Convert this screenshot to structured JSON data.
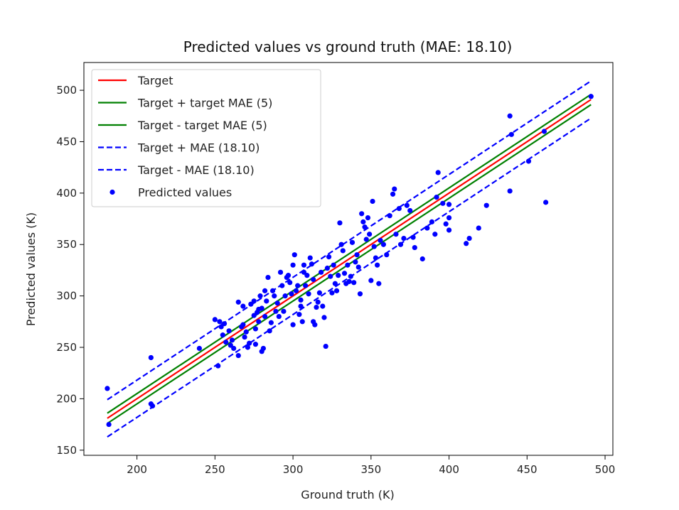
{
  "chart_data": {
    "type": "scatter",
    "title": "Predicted values vs ground truth (MAE: 18.10)",
    "xlabel": "Ground truth (K)",
    "ylabel": "Predicted values (K)",
    "xlim": [
      166,
      505
    ],
    "ylim": [
      145,
      527
    ],
    "xticks": [
      200,
      250,
      300,
      350,
      400,
      450,
      500
    ],
    "yticks": [
      150,
      200,
      250,
      300,
      350,
      400,
      450,
      500
    ],
    "xtick_labels": [
      "200",
      "250",
      "300",
      "350",
      "400",
      "450",
      "500"
    ],
    "ytick_labels": [
      "150",
      "200",
      "250",
      "300",
      "350",
      "400",
      "450",
      "500"
    ],
    "grid": false,
    "legend_position": "upper-left",
    "lines": [
      {
        "name": "Target",
        "offset": 0,
        "color": "#ff0000",
        "dash": "solid",
        "x": [
          181,
          491
        ]
      },
      {
        "name": "Target + target MAE (5)",
        "offset": 5,
        "color": "#008000",
        "dash": "solid",
        "x": [
          181,
          491
        ]
      },
      {
        "name": "Target - target MAE (5)",
        "offset": -5,
        "color": "#008000",
        "dash": "solid",
        "x": [
          181,
          491
        ]
      },
      {
        "name": "Target + MAE (18.10)",
        "offset": 18.1,
        "color": "#0000ff",
        "dash": "dashed",
        "x": [
          181,
          491
        ]
      },
      {
        "name": "Target - MAE (18.10)",
        "offset": -18.1,
        "color": "#0000ff",
        "dash": "dashed",
        "x": [
          181,
          491
        ]
      }
    ],
    "scatter": {
      "name": "Predicted values",
      "color": "#0000ff",
      "points": [
        [
          181,
          210
        ],
        [
          182,
          175
        ],
        [
          209,
          240
        ],
        [
          209,
          195
        ],
        [
          210,
          193
        ],
        [
          240,
          249
        ],
        [
          250,
          277
        ],
        [
          252,
          232
        ],
        [
          253,
          275
        ],
        [
          254,
          270
        ],
        [
          255,
          262
        ],
        [
          256,
          273
        ],
        [
          257,
          255
        ],
        [
          259,
          266
        ],
        [
          260,
          252
        ],
        [
          261,
          257
        ],
        [
          262,
          249
        ],
        [
          265,
          294
        ],
        [
          265,
          242
        ],
        [
          267,
          270
        ],
        [
          268,
          272
        ],
        [
          268,
          290
        ],
        [
          269,
          260
        ],
        [
          270,
          265
        ],
        [
          271,
          250
        ],
        [
          272,
          254
        ],
        [
          273,
          292
        ],
        [
          275,
          295
        ],
        [
          275,
          281
        ],
        [
          276,
          268
        ],
        [
          276,
          253
        ],
        [
          277,
          284
        ],
        [
          278,
          275
        ],
        [
          278,
          287
        ],
        [
          279,
          300
        ],
        [
          280,
          288
        ],
        [
          280,
          246
        ],
        [
          281,
          249
        ],
        [
          282,
          305
        ],
        [
          282,
          280
        ],
        [
          283,
          295
        ],
        [
          284,
          318
        ],
        [
          285,
          266
        ],
        [
          286,
          274
        ],
        [
          287,
          305
        ],
        [
          288,
          300
        ],
        [
          289,
          285
        ],
        [
          290,
          293
        ],
        [
          291,
          280
        ],
        [
          292,
          323
        ],
        [
          293,
          310
        ],
        [
          294,
          285
        ],
        [
          295,
          300
        ],
        [
          296,
          318
        ],
        [
          297,
          320
        ],
        [
          298,
          313
        ],
        [
          299,
          302
        ],
        [
          300,
          272
        ],
        [
          300,
          330
        ],
        [
          301,
          340
        ],
        [
          302,
          305
        ],
        [
          303,
          310
        ],
        [
          304,
          282
        ],
        [
          305,
          290
        ],
        [
          305,
          296
        ],
        [
          306,
          275
        ],
        [
          307,
          330
        ],
        [
          307,
          323
        ],
        [
          308,
          310
        ],
        [
          309,
          320
        ],
        [
          310,
          302
        ],
        [
          311,
          337
        ],
        [
          312,
          331
        ],
        [
          313,
          316
        ],
        [
          313,
          275
        ],
        [
          314,
          272
        ],
        [
          315,
          289
        ],
        [
          316,
          294
        ],
        [
          317,
          303
        ],
        [
          318,
          323
        ],
        [
          319,
          290
        ],
        [
          320,
          279
        ],
        [
          321,
          251
        ],
        [
          322,
          327
        ],
        [
          323,
          338
        ],
        [
          324,
          319
        ],
        [
          325,
          303
        ],
        [
          326,
          330
        ],
        [
          327,
          312
        ],
        [
          328,
          305
        ],
        [
          329,
          320
        ],
        [
          330,
          371
        ],
        [
          331,
          350
        ],
        [
          332,
          344
        ],
        [
          333,
          322
        ],
        [
          334,
          312
        ],
        [
          335,
          330
        ],
        [
          336,
          314
        ],
        [
          337,
          319
        ],
        [
          338,
          352
        ],
        [
          339,
          313
        ],
        [
          340,
          333
        ],
        [
          341,
          340
        ],
        [
          342,
          328
        ],
        [
          343,
          302
        ],
        [
          344,
          380
        ],
        [
          345,
          372
        ],
        [
          346,
          367
        ],
        [
          347,
          355
        ],
        [
          348,
          376
        ],
        [
          349,
          360
        ],
        [
          350,
          315
        ],
        [
          351,
          392
        ],
        [
          352,
          348
        ],
        [
          353,
          337
        ],
        [
          354,
          330
        ],
        [
          355,
          312
        ],
        [
          356,
          354
        ],
        [
          358,
          350
        ],
        [
          360,
          340
        ],
        [
          362,
          378
        ],
        [
          364,
          399
        ],
        [
          365,
          404
        ],
        [
          366,
          360
        ],
        [
          368,
          385
        ],
        [
          369,
          350
        ],
        [
          371,
          356
        ],
        [
          373,
          388
        ],
        [
          375,
          383
        ],
        [
          377,
          357
        ],
        [
          378,
          347
        ],
        [
          383,
          336
        ],
        [
          386,
          366
        ],
        [
          389,
          372
        ],
        [
          391,
          360
        ],
        [
          392,
          396
        ],
        [
          393,
          420
        ],
        [
          396,
          390
        ],
        [
          398,
          370
        ],
        [
          400,
          364
        ],
        [
          400,
          376
        ],
        [
          400,
          389
        ],
        [
          411,
          351
        ],
        [
          413,
          356
        ],
        [
          419,
          366
        ],
        [
          424,
          388
        ],
        [
          439,
          475
        ],
        [
          439,
          402
        ],
        [
          440,
          457
        ],
        [
          451,
          431
        ],
        [
          461,
          460
        ],
        [
          462,
          391
        ],
        [
          491,
          494
        ]
      ]
    }
  }
}
